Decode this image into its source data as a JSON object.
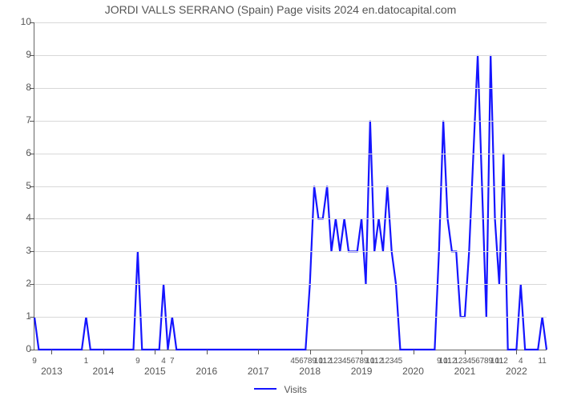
{
  "title": "JORDI VALLS SERRANO (Spain) Page visits 2024 en.datocapital.com",
  "legend_label": "Visits",
  "chart": {
    "type": "line",
    "line_color": "#1515ff",
    "line_width": 2.2,
    "grid_color": "#d8d8d8",
    "axis_color": "#666666",
    "background_color": "#ffffff",
    "text_color": "#555555",
    "ylim": [
      0,
      10
    ],
    "yticks": [
      0,
      1,
      2,
      3,
      4,
      5,
      6,
      7,
      8,
      9,
      10
    ],
    "x_count": 120,
    "year_markers": [
      {
        "idx": 4,
        "label": "2013"
      },
      {
        "idx": 16,
        "label": "2014"
      },
      {
        "idx": 28,
        "label": "2015"
      },
      {
        "idx": 40,
        "label": "2016"
      },
      {
        "idx": 52,
        "label": "2017"
      },
      {
        "idx": 64,
        "label": "2018"
      },
      {
        "idx": 76,
        "label": "2019"
      },
      {
        "idx": 88,
        "label": "2020"
      },
      {
        "idx": 100,
        "label": "2021"
      },
      {
        "idx": 112,
        "label": "2022"
      }
    ],
    "minor_labels": [
      {
        "idx": 0,
        "t": "9"
      },
      {
        "idx": 12,
        "t": "1"
      },
      {
        "idx": 24,
        "t": "9"
      },
      {
        "idx": 30,
        "t": "4"
      },
      {
        "idx": 32,
        "t": "7"
      },
      {
        "idx": 60,
        "t": "4"
      },
      {
        "idx": 61,
        "t": "5"
      },
      {
        "idx": 62,
        "t": "6"
      },
      {
        "idx": 63,
        "t": "7"
      },
      {
        "idx": 64,
        "t": "8"
      },
      {
        "idx": 65,
        "t": "9"
      },
      {
        "idx": 66,
        "t": "10"
      },
      {
        "idx": 67,
        "t": "11"
      },
      {
        "idx": 68,
        "t": "12"
      },
      {
        "idx": 69,
        "t": "1"
      },
      {
        "idx": 70,
        "t": "2"
      },
      {
        "idx": 71,
        "t": "3"
      },
      {
        "idx": 72,
        "t": "4"
      },
      {
        "idx": 73,
        "t": "5"
      },
      {
        "idx": 74,
        "t": "6"
      },
      {
        "idx": 75,
        "t": "7"
      },
      {
        "idx": 76,
        "t": "8"
      },
      {
        "idx": 77,
        "t": "9"
      },
      {
        "idx": 78,
        "t": "10"
      },
      {
        "idx": 79,
        "t": "11"
      },
      {
        "idx": 80,
        "t": "12"
      },
      {
        "idx": 81,
        "t": "1"
      },
      {
        "idx": 82,
        "t": "2"
      },
      {
        "idx": 83,
        "t": "3"
      },
      {
        "idx": 84,
        "t": "4"
      },
      {
        "idx": 85,
        "t": "5"
      },
      {
        "idx": 94,
        "t": "9"
      },
      {
        "idx": 95,
        "t": "10"
      },
      {
        "idx": 96,
        "t": "11"
      },
      {
        "idx": 97,
        "t": "12"
      },
      {
        "idx": 98,
        "t": "1"
      },
      {
        "idx": 99,
        "t": "2"
      },
      {
        "idx": 100,
        "t": "3"
      },
      {
        "idx": 101,
        "t": "4"
      },
      {
        "idx": 102,
        "t": "5"
      },
      {
        "idx": 103,
        "t": "6"
      },
      {
        "idx": 104,
        "t": "7"
      },
      {
        "idx": 105,
        "t": "8"
      },
      {
        "idx": 106,
        "t": "9"
      },
      {
        "idx": 107,
        "t": "10"
      },
      {
        "idx": 108,
        "t": "11"
      },
      {
        "idx": 109,
        "t": "12"
      },
      {
        "idx": 113,
        "t": "4"
      },
      {
        "idx": 118,
        "t": "11"
      }
    ],
    "values": [
      1,
      0,
      0,
      0,
      0,
      0,
      0,
      0,
      0,
      0,
      0,
      0,
      1,
      0,
      0,
      0,
      0,
      0,
      0,
      0,
      0,
      0,
      0,
      0,
      3,
      0,
      0,
      0,
      0,
      0,
      2,
      0,
      1,
      0,
      0,
      0,
      0,
      0,
      0,
      0,
      0,
      0,
      0,
      0,
      0,
      0,
      0,
      0,
      0,
      0,
      0,
      0,
      0,
      0,
      0,
      0,
      0,
      0,
      0,
      0,
      0,
      0,
      0,
      0,
      2,
      5,
      4,
      4,
      5,
      3,
      4,
      3,
      4,
      3,
      3,
      3,
      4,
      2,
      7,
      3,
      4,
      3,
      5,
      3,
      2,
      0,
      0,
      0,
      0,
      0,
      0,
      0,
      0,
      0,
      3,
      7,
      4,
      3,
      3,
      1,
      1,
      3,
      6,
      9,
      5,
      1,
      9,
      4,
      2,
      6,
      0,
      0,
      0,
      2,
      0,
      0,
      0,
      0,
      1,
      0
    ]
  }
}
